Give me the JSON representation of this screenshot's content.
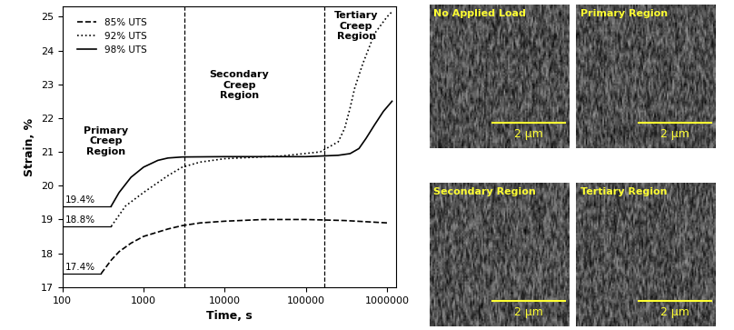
{
  "chart_data": {
    "type": "line",
    "x_label": "Time, s",
    "y_label": "Strain, %",
    "log": "x",
    "xlim": [
      100,
      1300000
    ],
    "xticks": [
      100,
      1000,
      10000,
      100000,
      1000000
    ],
    "ylim": [
      17,
      25.3
    ],
    "yticks": [
      17,
      18,
      19,
      20,
      21,
      22,
      23,
      24,
      25
    ],
    "legend": "upper left",
    "series": [
      {
        "name": "85% UTS",
        "color": "#000000",
        "line_style": "dashed",
        "x": [
          300,
          400,
          500,
          700,
          1000,
          2000,
          3000,
          5000,
          10000,
          30000,
          100000,
          300000,
          1000000
        ],
        "values": [
          17.4,
          17.8,
          18.05,
          18.3,
          18.5,
          18.72,
          18.82,
          18.9,
          18.95,
          19.0,
          19.0,
          18.97,
          18.9
        ]
      },
      {
        "name": "92% UTS",
        "color": "#000000",
        "line_style": "dotted",
        "x": [
          400,
          600,
          1000,
          2000,
          3000,
          5000,
          10000,
          50000,
          150000,
          250000,
          300000,
          350000,
          400000,
          500000,
          700000,
          1000000,
          1150000
        ],
        "values": [
          18.8,
          19.4,
          19.8,
          20.3,
          20.55,
          20.7,
          20.8,
          20.88,
          21.0,
          21.3,
          21.7,
          22.3,
          22.9,
          23.6,
          24.5,
          25.0,
          25.15
        ]
      },
      {
        "name": "98% UTS",
        "color": "#000000",
        "line_style": "solid",
        "x": [
          400,
          500,
          700,
          1000,
          1500,
          2000,
          3000,
          10000,
          100000,
          250000,
          350000,
          450000,
          550000,
          700000,
          900000,
          1150000
        ],
        "values": [
          19.4,
          19.8,
          20.25,
          20.55,
          20.75,
          20.82,
          20.85,
          20.86,
          20.86,
          20.9,
          20.95,
          21.1,
          21.4,
          21.8,
          22.2,
          22.5
        ]
      }
    ],
    "start_labels": [
      {
        "label": "19.4%",
        "value": 19.4
      },
      {
        "label": "18.8%",
        "value": 18.8
      },
      {
        "label": "17.4%",
        "value": 17.4
      }
    ],
    "region_boundaries": [
      3200,
      170000
    ],
    "regions": [
      "Primary\nCreep\nRegion",
      "Secondary\nCreep\nRegion",
      "Tertiary\nCreep\nRegion"
    ]
  },
  "images": [
    {
      "label": "No Applied Load",
      "scale_bar": "2 µm"
    },
    {
      "label": "Primary Region",
      "scale_bar": "2 µm"
    },
    {
      "label": "Secondary Region",
      "scale_bar": "2 µm"
    },
    {
      "label": "Tertiary Region",
      "scale_bar": "2 µm"
    }
  ]
}
